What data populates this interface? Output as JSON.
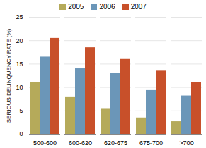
{
  "chart_data": {
    "type": "bar",
    "ylabel": "SERIOUS DELINQUENCY RATE (%)",
    "categories": [
      "500-600",
      "600-620",
      "620-675",
      "675-700",
      ">700"
    ],
    "series": [
      {
        "name": "2005",
        "color": "#b5aa5a",
        "values": [
          11.0,
          8.0,
          5.5,
          3.5,
          2.7
        ]
      },
      {
        "name": "2006",
        "color": "#6b96b8",
        "values": [
          16.5,
          14.0,
          13.0,
          9.5,
          8.2
        ]
      },
      {
        "name": "2007",
        "color": "#c8502a",
        "values": [
          20.5,
          18.5,
          16.0,
          13.5,
          11.0
        ]
      }
    ],
    "ylim": [
      0,
      25
    ],
    "yticks": [
      0,
      5,
      10,
      15,
      20,
      25
    ],
    "grid": true,
    "legend": "top"
  }
}
